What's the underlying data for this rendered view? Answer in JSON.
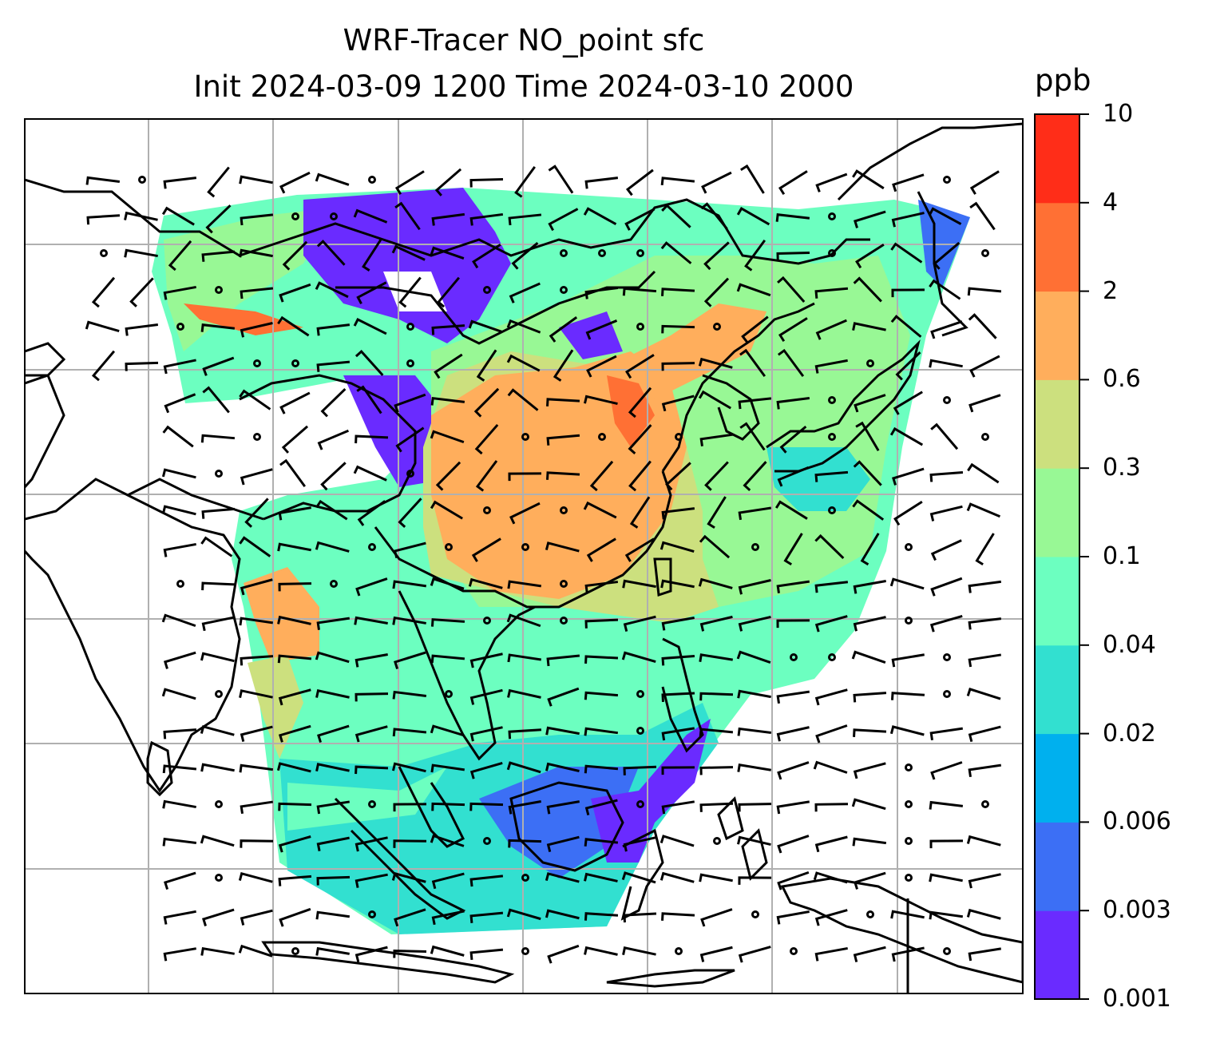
{
  "title": {
    "line1": "WRF-Tracer NO_point sfc",
    "line2": "Init 2024-03-09 1200 Time 2024-03-10 2000"
  },
  "colorbar": {
    "unit": "ppb",
    "levels": [
      "0.001",
      "0.003",
      "0.006",
      "0.02",
      "0.04",
      "0.1",
      "0.3",
      "0.6",
      "2",
      "4",
      "10"
    ],
    "colors": [
      "#6a2bff",
      "#3c6ff5",
      "#00b0ee",
      "#32e0d0",
      "#6cffc0",
      "#98f895",
      "#cce07e",
      "#ffae5c",
      "#ff7034",
      "#ff2d18"
    ]
  },
  "map": {
    "field_colors": {
      "lowest": "#6a2bff",
      "low": "#3c6ff5",
      "cyan": "#32e0d0",
      "aqua": "#6cffc0",
      "green": "#98f895",
      "olive": "#cce07e",
      "orange": "#ffae5c",
      "red": "#ff2d18"
    },
    "gridlines": true,
    "coastline_color": "#000000"
  }
}
